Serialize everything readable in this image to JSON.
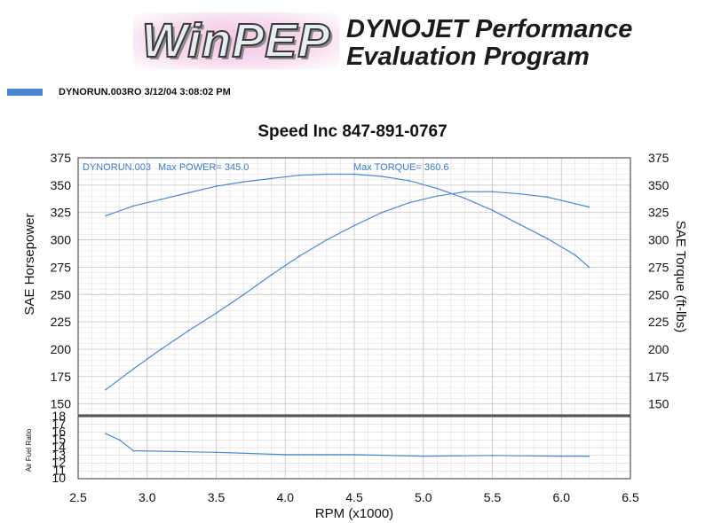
{
  "header": {
    "logo_text": "WinPEP",
    "program_title_line1": "DYNOJET Performance",
    "program_title_line2": "Evaluation Program",
    "run_line": "DYNORUN.003RO  3/12/04 3:08:02 PM"
  },
  "colors": {
    "series": "#4a88d6",
    "grid": "#c9c9c9",
    "frame": "#555555"
  },
  "chart_data": [
    {
      "type": "line",
      "title": "Speed Inc 847-891-0767",
      "xlabel": "RPM (x1000)",
      "ylabel": "SAE Horsepower",
      "y2label": "SAE Torque (ft-lbs)",
      "xlim": [
        2.5,
        6.5
      ],
      "ylim": [
        140,
        375
      ],
      "y2lim": [
        140,
        375
      ],
      "x_ticks": [
        "2.5",
        "3.0",
        "3.5",
        "4.0",
        "4.5",
        "5.0",
        "5.5",
        "6.0",
        "6.5"
      ],
      "y_ticks": [
        "375",
        "350",
        "325",
        "300",
        "275",
        "250",
        "225",
        "200",
        "175",
        "150"
      ],
      "y2_ticks": [
        "375",
        "350",
        "325",
        "300",
        "275",
        "250",
        "225",
        "200",
        "175",
        "150"
      ],
      "annotations": {
        "run": "DYNORUN.003",
        "max_power": "Max POWER= 345.0",
        "max_torque": "Max TORQUE= 360.6"
      },
      "series": [
        {
          "role": "power",
          "x": [
            2.7,
            2.9,
            3.1,
            3.3,
            3.5,
            3.7,
            3.9,
            4.1,
            4.3,
            4.5,
            4.7,
            4.9,
            5.1,
            5.3,
            5.5,
            5.7,
            5.9,
            6.1,
            6.2
          ],
          "values": [
            163,
            182,
            200,
            217,
            233,
            250,
            268,
            285,
            300,
            313,
            325,
            334,
            340,
            344,
            344,
            342,
            339,
            333,
            330
          ]
        },
        {
          "role": "torque",
          "x": [
            2.7,
            2.9,
            3.1,
            3.3,
            3.5,
            3.7,
            3.9,
            4.1,
            4.3,
            4.5,
            4.7,
            4.9,
            5.1,
            5.3,
            5.5,
            5.7,
            5.9,
            6.1,
            6.2
          ],
          "values": [
            322,
            331,
            337,
            343,
            349,
            353,
            356,
            359,
            360,
            360,
            358,
            354,
            347,
            338,
            327,
            314,
            301,
            286,
            275
          ]
        }
      ]
    },
    {
      "type": "line",
      "ylabel": "Air Fuel Ratio",
      "xlim": [
        2.5,
        6.5
      ],
      "ylim": [
        10,
        18
      ],
      "y_ticks": [
        "18",
        "17",
        "16",
        "15",
        "14",
        "13",
        "12",
        "11",
        "10"
      ],
      "series": [
        {
          "role": "air_fuel",
          "x": [
            2.7,
            2.8,
            2.9,
            3.2,
            3.5,
            4.0,
            4.5,
            5.0,
            5.5,
            6.0,
            6.2
          ],
          "values": [
            15.8,
            15.0,
            13.6,
            13.5,
            13.4,
            13.1,
            13.1,
            12.9,
            13.0,
            12.9,
            12.9
          ]
        }
      ]
    }
  ]
}
